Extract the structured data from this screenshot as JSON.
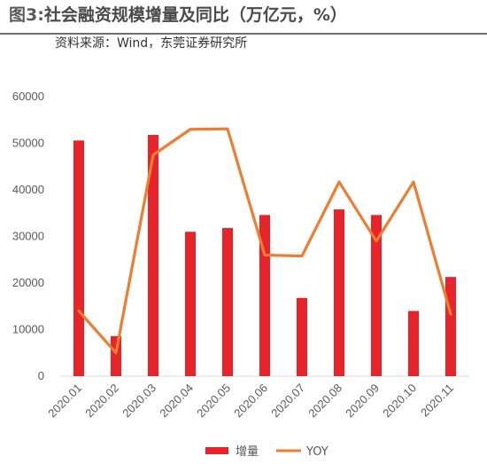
{
  "figure": {
    "label": "图3:",
    "title": "社会融资规模增量及同比（万亿元，%）",
    "source": "资料来源：Wind，东莞证券研究所"
  },
  "colors": {
    "bar": "#E8232A",
    "line": "#ED7D31",
    "axis": "#D9D9D9",
    "text": "#595959"
  },
  "chart_data": {
    "type": "bar",
    "categories": [
      "2020.01",
      "2020.02",
      "2020.03",
      "2020.04",
      "2020.05",
      "2020.06",
      "2020.07",
      "2020.08",
      "2020.09",
      "2020.10",
      "2020.11"
    ],
    "series": [
      {
        "name": "增量",
        "type": "bar",
        "color": "#E8232A",
        "values": [
          50600,
          8600,
          51800,
          31000,
          31800,
          34600,
          16800,
          35800,
          34600,
          14000,
          21300
        ]
      },
      {
        "name": "YOY",
        "type": "line",
        "color": "#ED7D31",
        "values": [
          14000,
          5000,
          47500,
          53000,
          53100,
          26000,
          25800,
          41700,
          29000,
          41700,
          13300
        ]
      }
    ],
    "ylim": [
      0,
      60000
    ],
    "yticks": [
      0,
      10000,
      20000,
      30000,
      40000,
      50000,
      60000
    ],
    "gridlines": false,
    "legend": "bottom-center"
  }
}
